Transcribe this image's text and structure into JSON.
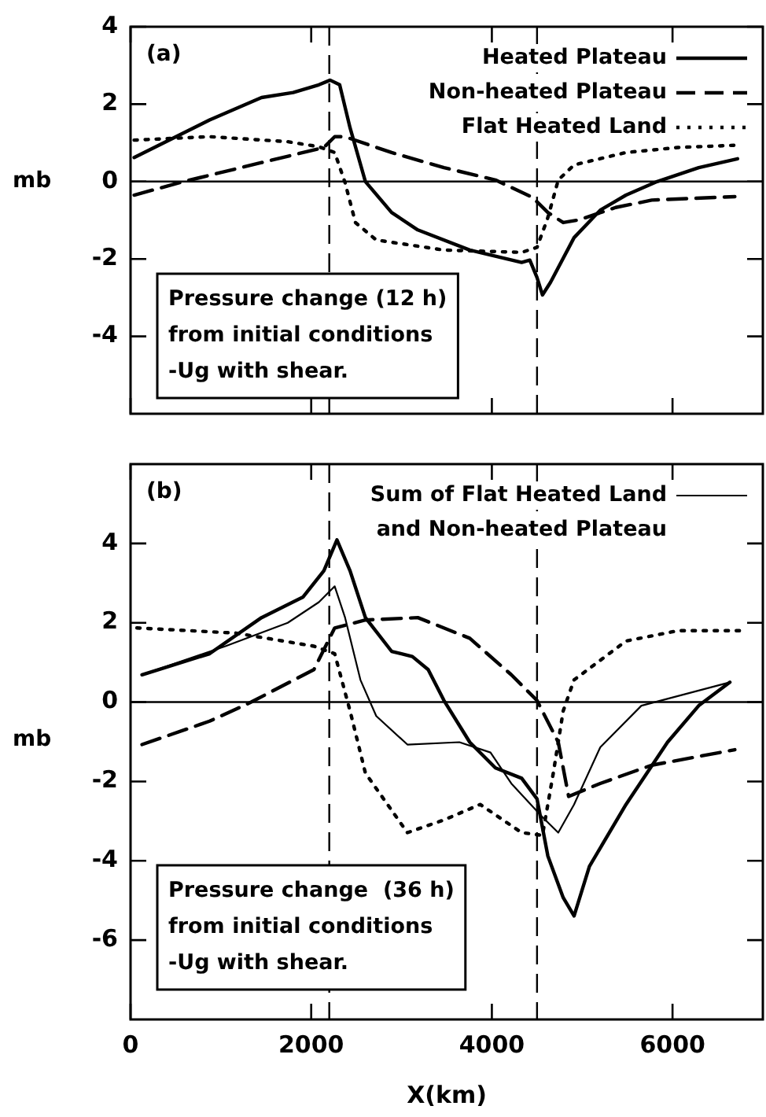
{
  "chart_data": [
    {
      "type": "line",
      "ylabel": "mb",
      "xlim": [
        0,
        7000
      ],
      "ylim": [
        -6,
        4
      ],
      "xticks": [
        0,
        2000,
        4000,
        6000
      ],
      "yticks": [
        -4,
        -2,
        0,
        2,
        4
      ],
      "tick_labels": "y",
      "legend": "top right",
      "grid": false,
      "marker": "none",
      "annotations": [
        "(a)",
        "Pressure change (12 h)\nfrom initial conditions\n-Ug with shear."
      ],
      "ref_lines": [
        {
          "axis": "y",
          "value": 0,
          "line_style": "solid",
          "color": "#000000"
        },
        {
          "axis": "x",
          "value": 2200,
          "line_style": "dashed",
          "color": "#000000"
        },
        {
          "axis": "x",
          "value": 4500,
          "line_style": "dashed",
          "color": "#000000"
        }
      ],
      "series": [
        {
          "name": "Heated Plateau",
          "color": "#000000",
          "line_style": "solid",
          "x": [
            40,
            875,
            1450,
            1800,
            2085,
            2210,
            2315,
            2430,
            2600,
            2890,
            3180,
            3755,
            4330,
            4420,
            4500,
            4560,
            4650,
            4910,
            5200,
            5485,
            5830,
            6290,
            6720
          ],
          "values": [
            0.62,
            1.59,
            2.17,
            2.3,
            2.5,
            2.62,
            2.5,
            1.39,
            0,
            -0.8,
            -1.25,
            -1.77,
            -2.09,
            -2.03,
            -2.48,
            -2.93,
            -2.6,
            -1.45,
            -0.74,
            -0.35,
            0,
            0.36,
            0.59
          ]
        },
        {
          "name": "Non-heated Plateau",
          "color": "#000000",
          "line_style": "dashed",
          "x": [
            40,
            590,
            1450,
            2140,
            2260,
            2370,
            2890,
            3470,
            4040,
            4450,
            4620,
            4790,
            4965,
            5370,
            5770,
            6690
          ],
          "values": [
            -0.35,
            0,
            0.49,
            0.88,
            1.16,
            1.16,
            0.75,
            0.36,
            0.04,
            -0.41,
            -0.8,
            -1.06,
            -0.99,
            -0.67,
            -0.48,
            -0.39
          ]
        },
        {
          "name": "Flat Heated Land",
          "color": "#000000",
          "line_style": "dotted",
          "x": [
            40,
            875,
            1740,
            2085,
            2260,
            2375,
            2490,
            2720,
            3470,
            4330,
            4500,
            4620,
            4735,
            4910,
            5485,
            6060,
            6720
          ],
          "values": [
            1.07,
            1.16,
            1.03,
            0.9,
            0.75,
            -0.03,
            -1.06,
            -1.51,
            -1.77,
            -1.83,
            -1.7,
            -0.93,
            0.04,
            0.43,
            0.75,
            0.88,
            0.94
          ]
        }
      ]
    },
    {
      "type": "line",
      "xlabel": "X(km)",
      "ylabel": "mb",
      "xlim": [
        0,
        7000
      ],
      "ylim": [
        -8,
        6
      ],
      "xticks": [
        0,
        2000,
        4000,
        6000
      ],
      "yticks": [
        -6,
        -4,
        -2,
        0,
        2,
        4
      ],
      "legend": "top right",
      "grid": false,
      "marker": "none",
      "annotations": [
        "(b)",
        "Pressure change  (36 h)\nfrom initial conditions\n-Ug with shear."
      ],
      "ref_lines": [
        {
          "axis": "y",
          "value": 0,
          "line_style": "solid",
          "color": "#000000"
        },
        {
          "axis": "x",
          "value": 2200,
          "line_style": "dashed",
          "color": "#000000"
        },
        {
          "axis": "x",
          "value": 4500,
          "line_style": "dashed",
          "color": "#000000"
        }
      ],
      "series": [
        {
          "color": "#000000",
          "line_style": "solid",
          "x": [
            127,
            875,
            1450,
            1910,
            2140,
            2285,
            2430,
            2600,
            2890,
            3120,
            3295,
            3470,
            3755,
            4040,
            4330,
            4500,
            4620,
            4790,
            4910,
            5080,
            5485,
            5945,
            6290,
            6635
          ],
          "values": [
            0.69,
            1.22,
            2.13,
            2.65,
            3.31,
            4.09,
            3.31,
            2.13,
            1.28,
            1.15,
            0.82,
            0.04,
            -1.01,
            -1.66,
            -1.92,
            -2.44,
            -3.88,
            -4.93,
            -5.39,
            -4.14,
            -2.58,
            -1.01,
            -0.09,
            0.5
          ]
        },
        {
          "color": "#000000",
          "line_style": "dashed",
          "x": [
            127,
            875,
            1335,
            2030,
            2260,
            2600,
            3180,
            3755,
            4215,
            4500,
            4735,
            4850,
            5200,
            5770,
            6690
          ],
          "values": [
            -1.07,
            -0.48,
            0,
            0.82,
            1.87,
            2.07,
            2.13,
            1.61,
            0.69,
            0.04,
            -1.01,
            -2.38,
            -2.05,
            -1.59,
            -1.2
          ]
        },
        {
          "color": "#000000",
          "line_style": "dotted",
          "x": [
            70,
            1165,
            2030,
            2260,
            2430,
            2600,
            3065,
            3470,
            3870,
            4330,
            4560,
            4680,
            4790,
            4910,
            5485,
            6060,
            6750
          ],
          "values": [
            1.87,
            1.74,
            1.41,
            1.22,
            -0.22,
            -1.79,
            -3.29,
            -2.97,
            -2.58,
            -3.29,
            -3.36,
            -1.79,
            -0.22,
            0.56,
            1.54,
            1.8,
            1.8
          ]
        },
        {
          "name": "Sum of Flat Heated Land and Non-heated Plateau",
          "color": "#000000",
          "line_style": "solid",
          "x": [
            127,
            1050,
            1740,
            2085,
            2260,
            2375,
            2545,
            2720,
            3065,
            3640,
            3985,
            4215,
            4560,
            4735,
            4910,
            5200,
            5655,
            6635
          ],
          "values": [
            0.69,
            1.41,
            2.0,
            2.52,
            2.92,
            2.13,
            0.56,
            -0.35,
            -1.07,
            -1.01,
            -1.27,
            -2.05,
            -2.9,
            -3.29,
            -2.58,
            -1.14,
            -0.09,
            0.5
          ]
        }
      ]
    }
  ]
}
